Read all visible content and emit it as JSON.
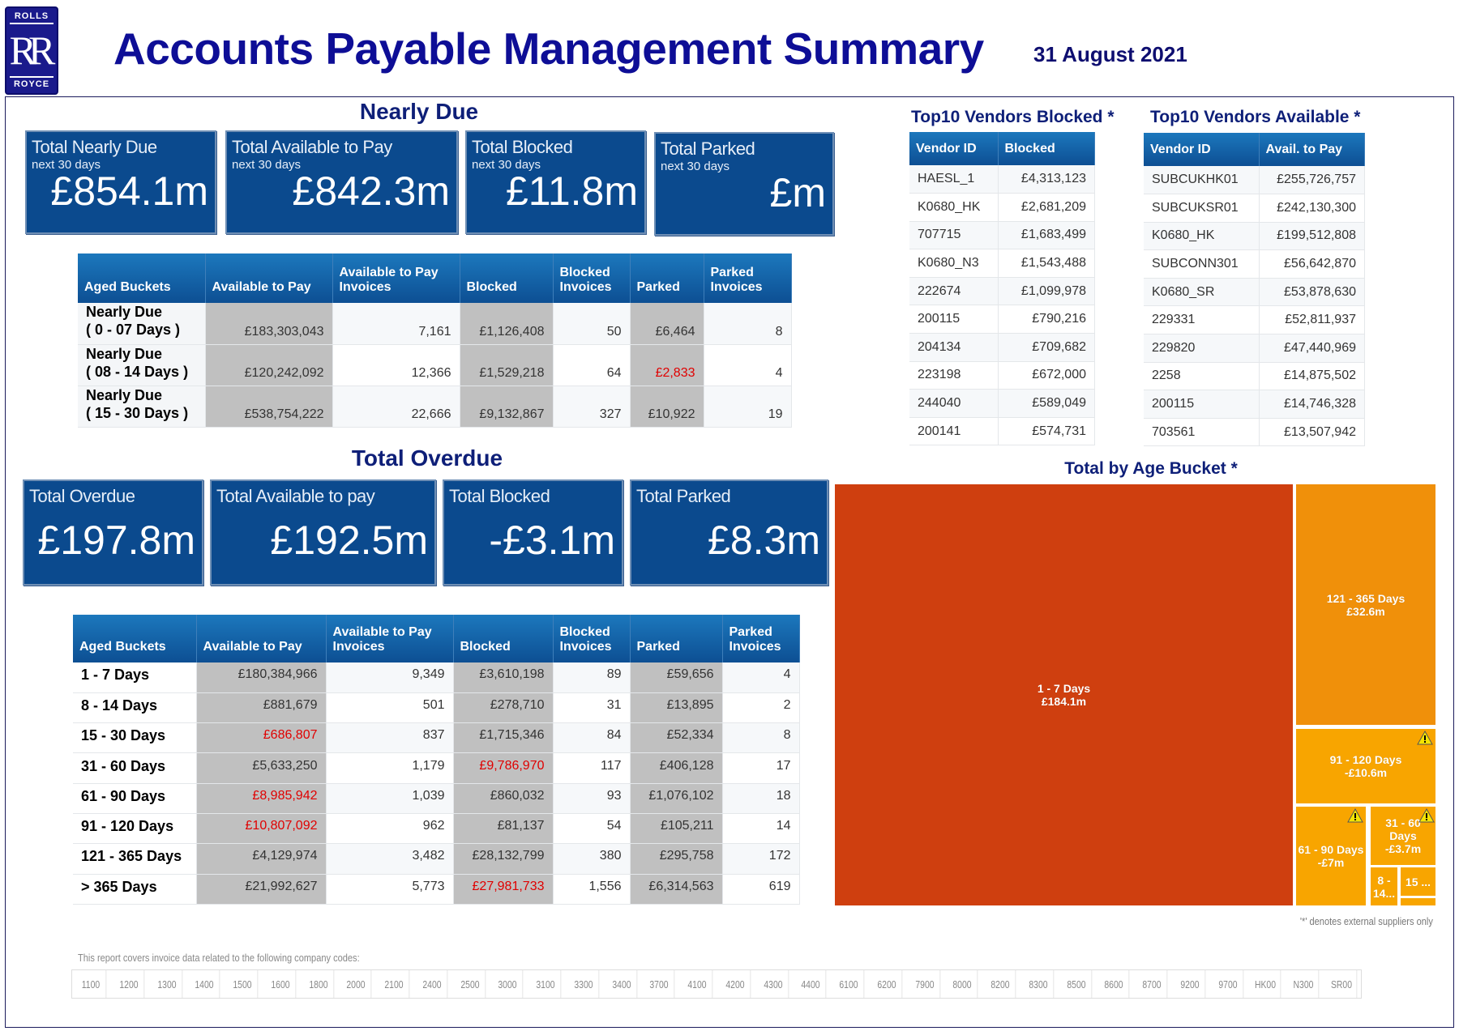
{
  "header": {
    "logo_top": "ROLLS",
    "logo_mark": "RR",
    "logo_bottom": "ROYCE",
    "title": "Accounts Payable Management Summary",
    "date": "31 August 2021"
  },
  "nearly_due": {
    "heading": "Nearly Due",
    "kpis": [
      {
        "label": "Total Nearly Due",
        "sub": "next 30 days",
        "value": "£854.1m"
      },
      {
        "label": "Total Available to Pay",
        "sub": "next 30 days",
        "value": "£842.3m"
      },
      {
        "label": "Total Blocked",
        "sub": "next 30 days",
        "value": "£11.8m"
      },
      {
        "label": "Total Parked",
        "sub": "next 30 days",
        "value": "£m"
      }
    ],
    "columns": [
      "Aged Buckets",
      "Available to Pay",
      "Available to Pay Invoices",
      "Blocked",
      "Blocked Invoices",
      "Parked",
      "Parked Invoices"
    ],
    "rows": [
      {
        "bucket": "Nearly Due\n( 0 - 07 Days )",
        "cells": [
          "£183,303,043",
          "7,161",
          "£1,126,408",
          "50",
          "£6,464",
          "8"
        ],
        "red": []
      },
      {
        "bucket": "Nearly Due\n( 08 - 14 Days )",
        "cells": [
          "£120,242,092",
          "12,366",
          "£1,529,218",
          "64",
          "£2,833",
          "4"
        ],
        "red": [
          4
        ]
      },
      {
        "bucket": "Nearly Due\n( 15 - 30 Days )",
        "cells": [
          "£538,754,222",
          "22,666",
          "£9,132,867",
          "327",
          "£10,922",
          "19"
        ],
        "red": []
      }
    ]
  },
  "overdue": {
    "heading": "Total Overdue",
    "kpis": [
      {
        "label": "Total Overdue",
        "value": "£197.8m"
      },
      {
        "label": "Total Available to pay",
        "value": "£192.5m"
      },
      {
        "label": "Total Blocked",
        "value": "-£3.1m"
      },
      {
        "label": "Total Parked",
        "value": "£8.3m"
      }
    ],
    "columns": [
      "Aged Buckets",
      "Available to Pay",
      "Available to Pay Invoices",
      "Blocked",
      "Blocked Invoices",
      "Parked",
      "Parked Invoices"
    ],
    "rows": [
      {
        "bucket": "1 - 7 Days",
        "cells": [
          "£180,384,966",
          "9,349",
          "£3,610,198",
          "89",
          "£59,656",
          "4"
        ],
        "red": []
      },
      {
        "bucket": "8 - 14 Days",
        "cells": [
          "£881,679",
          "501",
          "£278,710",
          "31",
          "£13,895",
          "2"
        ],
        "red": []
      },
      {
        "bucket": "15 - 30 Days",
        "cells": [
          "£686,807",
          "837",
          "£1,715,346",
          "84",
          "£52,334",
          "8"
        ],
        "red": [
          0
        ]
      },
      {
        "bucket": "31 - 60 Days",
        "cells": [
          "£5,633,250",
          "1,179",
          "£9,786,970",
          "117",
          "£406,128",
          "17"
        ],
        "red": [
          2
        ]
      },
      {
        "bucket": "61 - 90 Days",
        "cells": [
          "£8,985,942",
          "1,039",
          "£860,032",
          "93",
          "£1,076,102",
          "18"
        ],
        "red": [
          0
        ]
      },
      {
        "bucket": "91 - 120 Days",
        "cells": [
          "£10,807,092",
          "962",
          "£81,137",
          "54",
          "£105,211",
          "14"
        ],
        "red": [
          0
        ]
      },
      {
        "bucket": "121 - 365 Days",
        "cells": [
          "£4,129,974",
          "3,482",
          "£28,132,799",
          "380",
          "£295,758",
          "172"
        ],
        "red": []
      },
      {
        "bucket": " > 365 Days",
        "cells": [
          "£21,992,627",
          "5,773",
          "£27,981,733",
          "1,556",
          "£6,314,563",
          "619"
        ],
        "red": [
          2
        ]
      }
    ]
  },
  "vendors_blocked": {
    "heading": "Top10 Vendors Blocked *",
    "columns": [
      "Vendor ID",
      "Blocked"
    ],
    "rows": [
      [
        "HAESL_1",
        "£4,313,123"
      ],
      [
        "K0680_HK",
        "£2,681,209"
      ],
      [
        "707715",
        "£1,683,499"
      ],
      [
        "K0680_N3",
        "£1,543,488"
      ],
      [
        "222674",
        "£1,099,978"
      ],
      [
        "200115",
        "£790,216"
      ],
      [
        "204134",
        "£709,682"
      ],
      [
        "223198",
        "£672,000"
      ],
      [
        "244040",
        "£589,049"
      ],
      [
        "200141",
        "£574,731"
      ]
    ]
  },
  "vendors_available": {
    "heading": "Top10 Vendors Available *",
    "columns": [
      "Vendor ID",
      "Avail. to Pay"
    ],
    "rows": [
      [
        "SUBCUKHK01",
        "£255,726,757"
      ],
      [
        "SUBCUKSR01",
        "£242,130,300"
      ],
      [
        "K0680_HK",
        "£199,512,808"
      ],
      [
        "SUBCONN301",
        "£56,642,870"
      ],
      [
        "K0680_SR",
        "£53,878,630"
      ],
      [
        "229331",
        "£52,811,937"
      ],
      [
        "229820",
        "£47,440,969"
      ],
      [
        "2258",
        "£14,875,502"
      ],
      [
        "200115",
        "£14,746,328"
      ],
      [
        "703561",
        "£13,507,942"
      ]
    ]
  },
  "chart_data": {
    "type": "treemap",
    "title": "Total by Age Bucket *",
    "items": [
      {
        "label": "1 - 7 Days",
        "value_label": "£184.1m",
        "value": 184.1,
        "color": "#cf3f0f",
        "warning": false
      },
      {
        "label": "121 - 365 Days",
        "value_label": "£32.6m",
        "value": 32.6,
        "color": "#f0900a",
        "warning": false
      },
      {
        "label": "91 - 120 Days",
        "value_label": "-£10.6m",
        "value": -10.6,
        "color": "#f8a500",
        "warning": true
      },
      {
        "label": "61 - 90 Days",
        "value_label": "-£7m",
        "value": -7,
        "color": "#f8a500",
        "warning": true
      },
      {
        "label": "31 - 60 Days",
        "value_label": "-£3.7m",
        "value": -3.7,
        "color": "#f8a500",
        "warning": true
      },
      {
        "label": "8 - 14...",
        "value_label": "",
        "color": "#f8a500",
        "warning": false
      },
      {
        "label": "15 ...",
        "value_label": "",
        "color": "#f8a500",
        "warning": false
      },
      {
        "label": "",
        "value_label": "",
        "color": "#f8a500",
        "warning": false
      }
    ]
  },
  "footnote": "'*' denotes external suppliers only",
  "codes_caption": "This report covers invoice data related to the following company codes:",
  "company_codes": [
    "1100",
    "1200",
    "1300",
    "1400",
    "1500",
    "1600",
    "1800",
    "2000",
    "2100",
    "2400",
    "2500",
    "3000",
    "3100",
    "3300",
    "3400",
    "3700",
    "4100",
    "4200",
    "4300",
    "4400",
    "6100",
    "6200",
    "7900",
    "8000",
    "8200",
    "8300",
    "8500",
    "8600",
    "8700",
    "9200",
    "9700",
    "HK00",
    "N300",
    "SR00"
  ]
}
